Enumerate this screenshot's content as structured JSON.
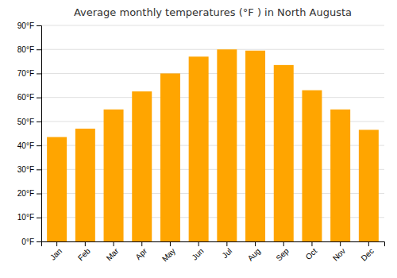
{
  "chart_data": {
    "type": "bar",
    "title": "Average monthly temperatures (°F ) in North Augusta",
    "categories": [
      "Jan",
      "Feb",
      "Mar",
      "Apr",
      "May",
      "Jun",
      "Jul",
      "Aug",
      "Sep",
      "Oct",
      "Nov",
      "Dec"
    ],
    "values": [
      43.5,
      47,
      55,
      62.5,
      70,
      77,
      80,
      79.5,
      73.5,
      63,
      55,
      46.5
    ],
    "color": "#FFA500",
    "ylim": [
      0,
      90
    ],
    "yticks": [
      {
        "value": 0,
        "label": "0°F"
      },
      {
        "value": 10,
        "label": "10°F"
      },
      {
        "value": 20,
        "label": "20°F"
      },
      {
        "value": 30,
        "label": "30°F"
      },
      {
        "value": 40,
        "label": "40°F"
      },
      {
        "value": 50,
        "label": "50°F"
      },
      {
        "value": 60,
        "label": "60°F"
      },
      {
        "value": 70,
        "label": "70°F"
      },
      {
        "value": 80,
        "label": "80°F"
      },
      {
        "value": 90,
        "label": "90°F"
      }
    ],
    "grid": true
  }
}
